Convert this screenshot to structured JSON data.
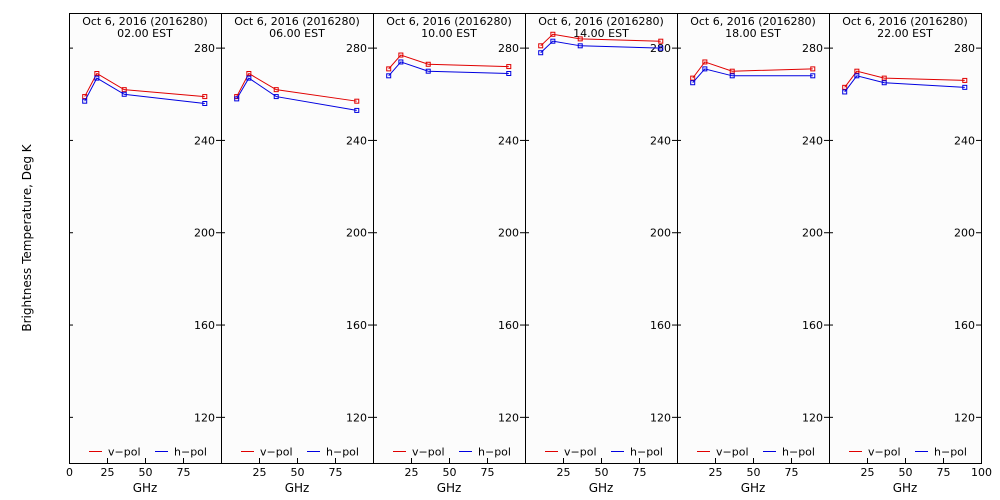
{
  "chart_data": {
    "type": "line",
    "ylabel": "Brightness Temperature, Deg K",
    "xlabel": "GHz",
    "xlim": [
      0,
      100
    ],
    "ylim": [
      100,
      295
    ],
    "xticks": [
      0,
      25,
      50,
      75,
      100
    ],
    "yticks": [
      120,
      160,
      200,
      240,
      280
    ],
    "x": [
      10,
      18,
      36,
      89
    ],
    "legend": {
      "v": "v−pol",
      "h": "h−pol"
    },
    "colors": {
      "v": "#e00000",
      "h": "#0000e0"
    },
    "panels": [
      {
        "title": "Oct  6, 2016 (2016280)",
        "time": "02.00 EST",
        "v": [
          259,
          269,
          262,
          259
        ],
        "h": [
          257,
          267,
          260,
          256
        ]
      },
      {
        "title": "Oct  6, 2016 (2016280)",
        "time": "06.00 EST",
        "v": [
          259,
          269,
          262,
          257
        ],
        "h": [
          258,
          267,
          259,
          253
        ]
      },
      {
        "title": "Oct  6, 2016 (2016280)",
        "time": "10.00 EST",
        "v": [
          271,
          277,
          273,
          272
        ],
        "h": [
          268,
          274,
          270,
          269
        ]
      },
      {
        "title": "Oct  6, 2016 (2016280)",
        "time": "14.00 EST",
        "v": [
          281,
          286,
          284,
          283
        ],
        "h": [
          278,
          283,
          281,
          280
        ]
      },
      {
        "title": "Oct  6, 2016 (2016280)",
        "time": "18.00 EST",
        "v": [
          267,
          274,
          270,
          271
        ],
        "h": [
          265,
          271,
          268,
          268
        ]
      },
      {
        "title": "Oct  6, 2016 (2016280)",
        "time": "22.00 EST",
        "v": [
          263,
          270,
          267,
          266
        ],
        "h": [
          261,
          268,
          265,
          263
        ]
      }
    ]
  }
}
